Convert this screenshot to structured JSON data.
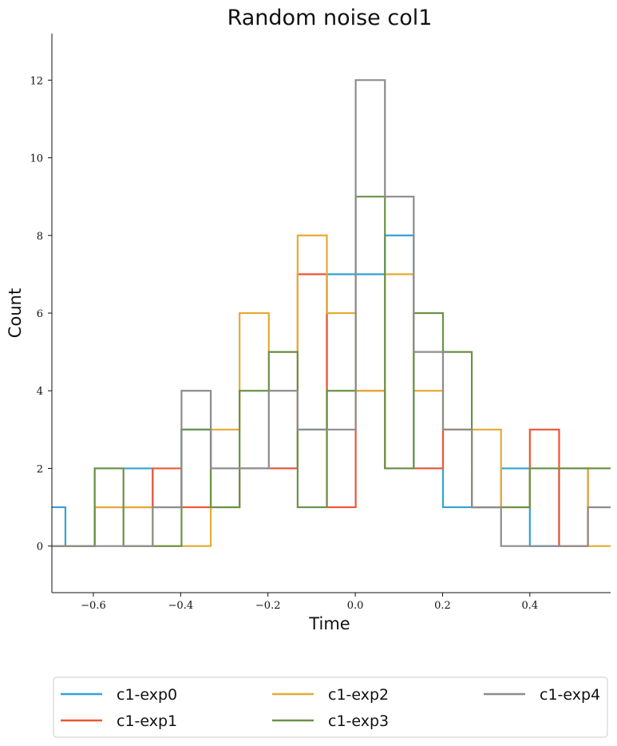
{
  "chart_data": {
    "type": "histogram-step",
    "title": "Random noise col1",
    "xlabel": "Time",
    "ylabel": "Count",
    "xlim": [
      -0.695,
      0.585
    ],
    "ylim": [
      -1.2,
      13.2
    ],
    "xticks": [
      -0.6,
      -0.4,
      -0.2,
      0.0,
      0.2,
      0.4
    ],
    "xtick_labels": [
      "−0.6",
      "−0.4",
      "−0.2",
      "0.0",
      "0.2",
      "0.4"
    ],
    "yticks": [
      0,
      2,
      4,
      6,
      8,
      10,
      12
    ],
    "ytick_labels": [
      "0",
      "2",
      "4",
      "6",
      "8",
      "10",
      "12"
    ],
    "bin_edges": [
      -0.73,
      -0.664,
      -0.597,
      -0.531,
      -0.464,
      -0.398,
      -0.331,
      -0.265,
      -0.198,
      -0.132,
      -0.065,
      0.001,
      0.068,
      0.134,
      0.201,
      0.267,
      0.334,
      0.4,
      0.467,
      0.533,
      0.6
    ],
    "series": [
      {
        "name": "c1-exp0",
        "color": "#34a1d6",
        "values": [
          1,
          0,
          2,
          2,
          1,
          3,
          2,
          2,
          2,
          3,
          7,
          7,
          8,
          2,
          1,
          1,
          2,
          0,
          2,
          1
        ]
      },
      {
        "name": "c1-exp1",
        "color": "#ee5534",
        "values": [
          0,
          0,
          1,
          1,
          2,
          1,
          1,
          2,
          2,
          7,
          1,
          4,
          2,
          2,
          3,
          1,
          1,
          3,
          0,
          2
        ]
      },
      {
        "name": "c1-exp2",
        "color": "#e6aa35",
        "values": [
          0,
          0,
          1,
          1,
          0,
          0,
          3,
          6,
          5,
          8,
          6,
          4,
          7,
          4,
          3,
          3,
          1,
          2,
          2,
          0
        ]
      },
      {
        "name": "c1-exp3",
        "color": "#6a9148",
        "values": [
          0,
          0,
          2,
          0,
          0,
          3,
          1,
          4,
          5,
          1,
          4,
          9,
          2,
          6,
          5,
          1,
          1,
          2,
          2,
          2
        ]
      },
      {
        "name": "c1-exp4",
        "color": "#8c8c8c",
        "values": [
          0,
          0,
          0,
          0,
          1,
          4,
          2,
          2,
          4,
          3,
          3,
          12,
          9,
          5,
          3,
          1,
          0,
          0,
          0,
          1
        ]
      }
    ],
    "legend_position": "bottom, outside plot, 3 columns",
    "grid": false
  }
}
